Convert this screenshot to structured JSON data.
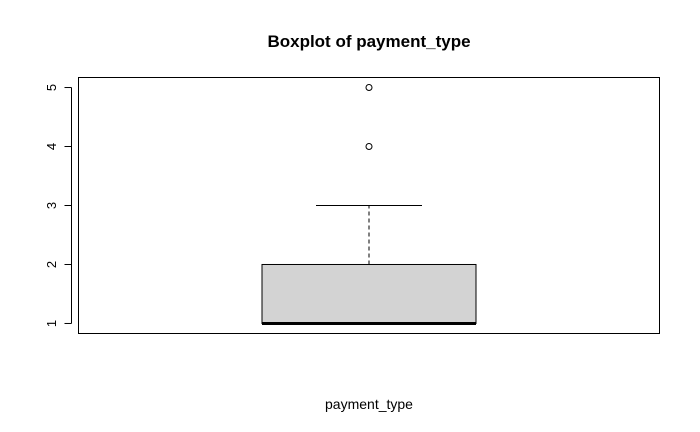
{
  "chart_data": {
    "type": "boxplot",
    "title": "Boxplot of payment_type",
    "xlabel": "payment_type",
    "ylabel": "",
    "ylim": [
      0.83,
      5.17
    ],
    "y_ticks": [
      1,
      2,
      3,
      4,
      5
    ],
    "grid": false,
    "series": [
      {
        "min": 1,
        "q1": 1,
        "median": 1,
        "q3": 2,
        "whisker_high": 3,
        "outliers": [
          4,
          5
        ]
      }
    ],
    "colors": {
      "box_fill": "#d3d3d3",
      "stroke": "#000000",
      "background": "#ffffff"
    }
  }
}
